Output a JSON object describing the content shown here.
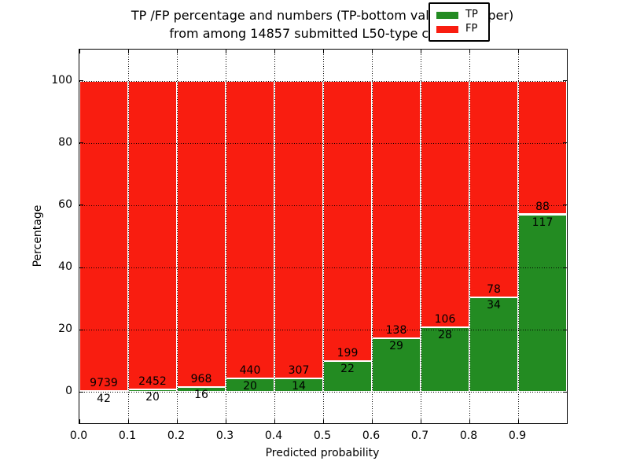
{
  "title": {
    "line1": "TP /FP percentage and numbers (TP-bottom value, FP-upper)",
    "line2": "from among 14857 submitted L50-type contacts"
  },
  "axes": {
    "xlabel": "Predicted probability",
    "ylabel": "Percentage",
    "xtick_labels": [
      "0.0",
      "0.1",
      "0.2",
      "0.3",
      "0.4",
      "0.5",
      "0.6",
      "0.7",
      "0.8",
      "0.9"
    ],
    "ytick_labels": [
      "0",
      "20",
      "40",
      "60",
      "80",
      "100"
    ],
    "ytick_values": [
      0,
      20,
      40,
      60,
      80,
      100
    ],
    "xlim": [
      0.0,
      1.0
    ],
    "ylim": [
      -10,
      110
    ],
    "grid": "dotted black, drawn on top of bars"
  },
  "legend": {
    "items": [
      {
        "label": "TP",
        "color": "#238b22"
      },
      {
        "label": "FP",
        "color": "#f91d10"
      }
    ],
    "position": "upper right"
  },
  "chart_data": {
    "type": "bar",
    "stacked": true,
    "normalization": "each bin scaled to 100%",
    "title": "TP /FP percentage and numbers (TP-bottom value, FP-upper) from among 14857 submitted L50-type contacts",
    "xlabel": "Predicted probability",
    "ylabel": "Percentage",
    "categories": [
      "0.0-0.1",
      "0.1-0.2",
      "0.2-0.3",
      "0.3-0.4",
      "0.4-0.5",
      "0.5-0.6",
      "0.6-0.7",
      "0.7-0.8",
      "0.8-0.9",
      "0.9-1.0"
    ],
    "series": [
      {
        "name": "TP",
        "color": "#238b22",
        "values": [
          42,
          20,
          16,
          20,
          14,
          22,
          29,
          28,
          34,
          117
        ]
      },
      {
        "name": "FP",
        "color": "#f91d10",
        "values": [
          9739,
          2452,
          968,
          440,
          307,
          199,
          138,
          106,
          78,
          88
        ]
      }
    ],
    "total_submitted": 14857,
    "annotation_rule": "FP count printed just above TP/FP boundary, TP count just below it",
    "ylim": [
      -10,
      110
    ],
    "bin_width": 0.1
  }
}
